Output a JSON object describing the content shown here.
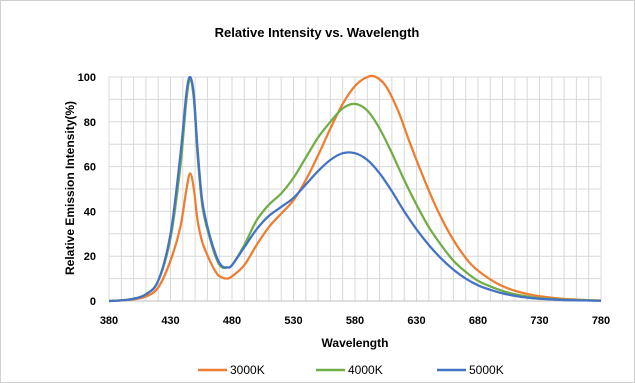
{
  "chart_data": {
    "type": "line",
    "title": "Relative Intensity vs. Wavelength",
    "xlabel": "Wavelength",
    "ylabel": "Relative Emission Intensity(%)",
    "xlim": [
      380,
      780
    ],
    "ylim": [
      0,
      100
    ],
    "x_ticks": [
      380,
      430,
      480,
      530,
      580,
      630,
      680,
      730,
      780
    ],
    "y_ticks": [
      0,
      20,
      40,
      60,
      80,
      100
    ],
    "x_minor_step": 10,
    "y_minor_step": 10,
    "grid": true,
    "legend_position": "bottom",
    "series": [
      {
        "name": "3000K",
        "color": "#ed7d31",
        "points": [
          [
            380,
            0
          ],
          [
            390,
            0.3
          ],
          [
            400,
            0.8
          ],
          [
            410,
            2
          ],
          [
            420,
            6
          ],
          [
            430,
            18
          ],
          [
            438,
            33
          ],
          [
            443,
            50
          ],
          [
            446,
            57
          ],
          [
            449,
            50
          ],
          [
            452,
            36
          ],
          [
            456,
            26
          ],
          [
            462,
            18
          ],
          [
            468,
            12
          ],
          [
            472,
            10.5
          ],
          [
            476,
            10
          ],
          [
            480,
            11
          ],
          [
            490,
            16
          ],
          [
            500,
            25
          ],
          [
            510,
            33
          ],
          [
            520,
            39
          ],
          [
            530,
            45
          ],
          [
            540,
            54
          ],
          [
            550,
            65
          ],
          [
            560,
            77
          ],
          [
            570,
            88
          ],
          [
            580,
            96
          ],
          [
            590,
            100
          ],
          [
            597,
            100
          ],
          [
            605,
            96
          ],
          [
            615,
            85
          ],
          [
            625,
            70
          ],
          [
            635,
            56
          ],
          [
            645,
            43
          ],
          [
            655,
            32
          ],
          [
            665,
            23
          ],
          [
            675,
            16
          ],
          [
            685,
            11.5
          ],
          [
            695,
            8
          ],
          [
            705,
            5.5
          ],
          [
            715,
            3.8
          ],
          [
            725,
            2.6
          ],
          [
            735,
            1.8
          ],
          [
            745,
            1.2
          ],
          [
            755,
            0.8
          ],
          [
            765,
            0.5
          ],
          [
            780,
            0.2
          ]
        ]
      },
      {
        "name": "4000K",
        "color": "#70ad47",
        "points": [
          [
            380,
            0
          ],
          [
            390,
            0.3
          ],
          [
            400,
            1
          ],
          [
            410,
            3
          ],
          [
            420,
            9
          ],
          [
            430,
            28
          ],
          [
            438,
            60
          ],
          [
            443,
            90
          ],
          [
            446,
            99
          ],
          [
            449,
            90
          ],
          [
            452,
            65
          ],
          [
            456,
            42
          ],
          [
            462,
            28
          ],
          [
            468,
            18
          ],
          [
            472,
            15
          ],
          [
            476,
            15
          ],
          [
            480,
            16
          ],
          [
            490,
            25
          ],
          [
            500,
            36
          ],
          [
            510,
            43
          ],
          [
            520,
            48
          ],
          [
            530,
            55
          ],
          [
            540,
            64
          ],
          [
            550,
            73
          ],
          [
            560,
            80
          ],
          [
            570,
            86
          ],
          [
            580,
            88
          ],
          [
            590,
            85
          ],
          [
            600,
            77
          ],
          [
            610,
            66
          ],
          [
            620,
            54
          ],
          [
            630,
            43
          ],
          [
            640,
            33
          ],
          [
            650,
            25
          ],
          [
            660,
            18
          ],
          [
            670,
            13
          ],
          [
            680,
            9
          ],
          [
            690,
            6.5
          ],
          [
            700,
            4.5
          ],
          [
            710,
            3
          ],
          [
            720,
            2
          ],
          [
            730,
            1.3
          ],
          [
            740,
            0.9
          ],
          [
            750,
            0.6
          ],
          [
            760,
            0.4
          ],
          [
            780,
            0.1
          ]
        ]
      },
      {
        "name": "5000K",
        "color": "#4472c4",
        "points": [
          [
            380,
            0
          ],
          [
            390,
            0.3
          ],
          [
            400,
            1
          ],
          [
            410,
            3
          ],
          [
            420,
            9
          ],
          [
            430,
            30
          ],
          [
            438,
            65
          ],
          [
            443,
            93
          ],
          [
            446,
            100
          ],
          [
            449,
            92
          ],
          [
            452,
            68
          ],
          [
            456,
            44
          ],
          [
            462,
            29
          ],
          [
            468,
            19
          ],
          [
            472,
            15.5
          ],
          [
            476,
            15
          ],
          [
            480,
            16
          ],
          [
            490,
            24
          ],
          [
            500,
            32
          ],
          [
            510,
            38
          ],
          [
            520,
            42
          ],
          [
            530,
            46
          ],
          [
            540,
            52
          ],
          [
            550,
            58
          ],
          [
            560,
            63
          ],
          [
            570,
            66
          ],
          [
            580,
            66
          ],
          [
            590,
            63
          ],
          [
            600,
            57
          ],
          [
            610,
            49
          ],
          [
            620,
            40
          ],
          [
            630,
            32
          ],
          [
            640,
            25
          ],
          [
            650,
            19
          ],
          [
            660,
            14
          ],
          [
            670,
            10
          ],
          [
            680,
            7
          ],
          [
            690,
            5
          ],
          [
            700,
            3.4
          ],
          [
            710,
            2.3
          ],
          [
            720,
            1.5
          ],
          [
            730,
            1
          ],
          [
            740,
            0.7
          ],
          [
            750,
            0.4
          ],
          [
            760,
            0.3
          ],
          [
            780,
            0.1
          ]
        ]
      }
    ]
  }
}
